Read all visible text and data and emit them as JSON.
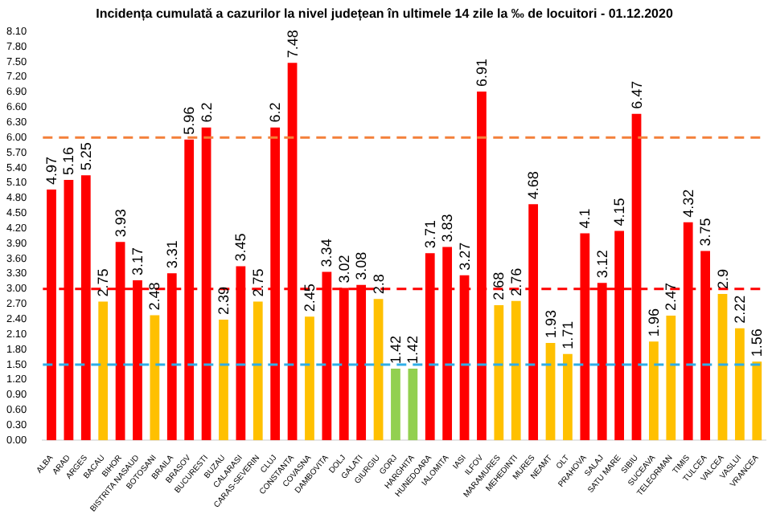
{
  "chart_data": {
    "type": "bar",
    "title": "Incidența cumulată a cazurilor la nivel județean în ultimele 14 zile la ‰ de locuitori - 01.12.2020",
    "categories": [
      "ALBA",
      "ARAD",
      "ARGES",
      "BACAU",
      "BIHOR",
      "BISTRITA NASAUD",
      "BOTOSANI",
      "BRAILA",
      "BRASOV",
      "BUCURESTI",
      "BUZAU",
      "CALARASI",
      "CARAS-SEVERIN",
      "CLUJ",
      "CONSTANTA",
      "COVASNA",
      "DAMBOVITA",
      "DOLJ",
      "GALATI",
      "GIURGIU",
      "GORJ",
      "HARGHITA",
      "HUNEDOARA",
      "IALOMITA",
      "IASI",
      "ILFOV",
      "MARAMURES",
      "MEHEDINTI",
      "MURES",
      "NEAMT",
      "OLT",
      "PRAHOVA",
      "SALAJ",
      "SATU MARE",
      "SIBIU",
      "SUCEAVA",
      "TELEORMAN",
      "TIMIS",
      "TULCEA",
      "VALCEA",
      "VASLUI",
      "VRANCEA"
    ],
    "values": [
      4.97,
      5.16,
      5.25,
      2.75,
      3.93,
      3.17,
      2.48,
      3.31,
      5.96,
      6.2,
      2.39,
      3.45,
      2.75,
      6.2,
      7.48,
      2.45,
      3.34,
      3.02,
      3.08,
      2.8,
      1.42,
      1.42,
      3.71,
      3.83,
      3.27,
      6.91,
      2.68,
      2.76,
      4.68,
      1.93,
      1.71,
      4.1,
      3.12,
      4.15,
      6.47,
      1.96,
      2.47,
      4.32,
      3.75,
      2.9,
      2.22,
      1.56
    ],
    "colors": [
      "#ff0000",
      "#ff0000",
      "#ff0000",
      "#ffc000",
      "#ff0000",
      "#ff0000",
      "#ffc000",
      "#ff0000",
      "#ff0000",
      "#ff0000",
      "#ffc000",
      "#ff0000",
      "#ffc000",
      "#ff0000",
      "#ff0000",
      "#ffc000",
      "#ff0000",
      "#ff0000",
      "#ff0000",
      "#ffc000",
      "#92d050",
      "#92d050",
      "#ff0000",
      "#ff0000",
      "#ff0000",
      "#ff0000",
      "#ffc000",
      "#ffc000",
      "#ff0000",
      "#ffc000",
      "#ffc000",
      "#ff0000",
      "#ff0000",
      "#ff0000",
      "#ff0000",
      "#ffc000",
      "#ffc000",
      "#ff0000",
      "#ff0000",
      "#ffc000",
      "#ffc000",
      "#ffc000"
    ],
    "ylim": [
      0,
      8.1
    ],
    "yticks": [
      {
        "value": 0,
        "label": "0.00"
      },
      {
        "value": 0.3,
        "label": "0.30"
      },
      {
        "value": 0.6,
        "label": "0.60"
      },
      {
        "value": 0.9,
        "label": "0.90"
      },
      {
        "value": 1.2,
        "label": "1.20"
      },
      {
        "value": 1.5,
        "label": "1.50"
      },
      {
        "value": 1.8,
        "label": "1.80"
      },
      {
        "value": 2.1,
        "label": "2.10"
      },
      {
        "value": 2.4,
        "label": "2.40"
      },
      {
        "value": 2.7,
        "label": "2.70"
      },
      {
        "value": 3,
        "label": "3.00"
      },
      {
        "value": 3.3,
        "label": "3.30"
      },
      {
        "value": 3.6,
        "label": "3.60"
      },
      {
        "value": 3.9,
        "label": "3.90"
      },
      {
        "value": 4.2,
        "label": "4.20"
      },
      {
        "value": 4.5,
        "label": "4.50"
      },
      {
        "value": 4.8,
        "label": "4.80"
      },
      {
        "value": 5.1,
        "label": "5.10"
      },
      {
        "value": 5.4,
        "label": "5.40"
      },
      {
        "value": 5.7,
        "label": "5.70"
      },
      {
        "value": 6,
        "label": "6.00"
      },
      {
        "value": 6.3,
        "label": "6.30"
      },
      {
        "value": 6.6,
        "label": "6.60"
      },
      {
        "value": 6.9,
        "label": "6.90"
      },
      {
        "value": 7.2,
        "label": "7.20"
      },
      {
        "value": 7.5,
        "label": "7.50"
      },
      {
        "value": 7.8,
        "label": "7.80"
      },
      {
        "value": 8.1,
        "label": "8.10"
      }
    ],
    "ref_lines": [
      {
        "axis": "y",
        "value": 6,
        "color": "#f4803a",
        "line_style": "dashed"
      },
      {
        "axis": "y",
        "value": 3,
        "color": "#ff0000",
        "line_style": "dashed"
      },
      {
        "axis": "y",
        "value": 1.5,
        "color": "#2eaee8",
        "line_style": "dashed"
      }
    ],
    "data_labels": true,
    "grid": false,
    "legend": false
  }
}
